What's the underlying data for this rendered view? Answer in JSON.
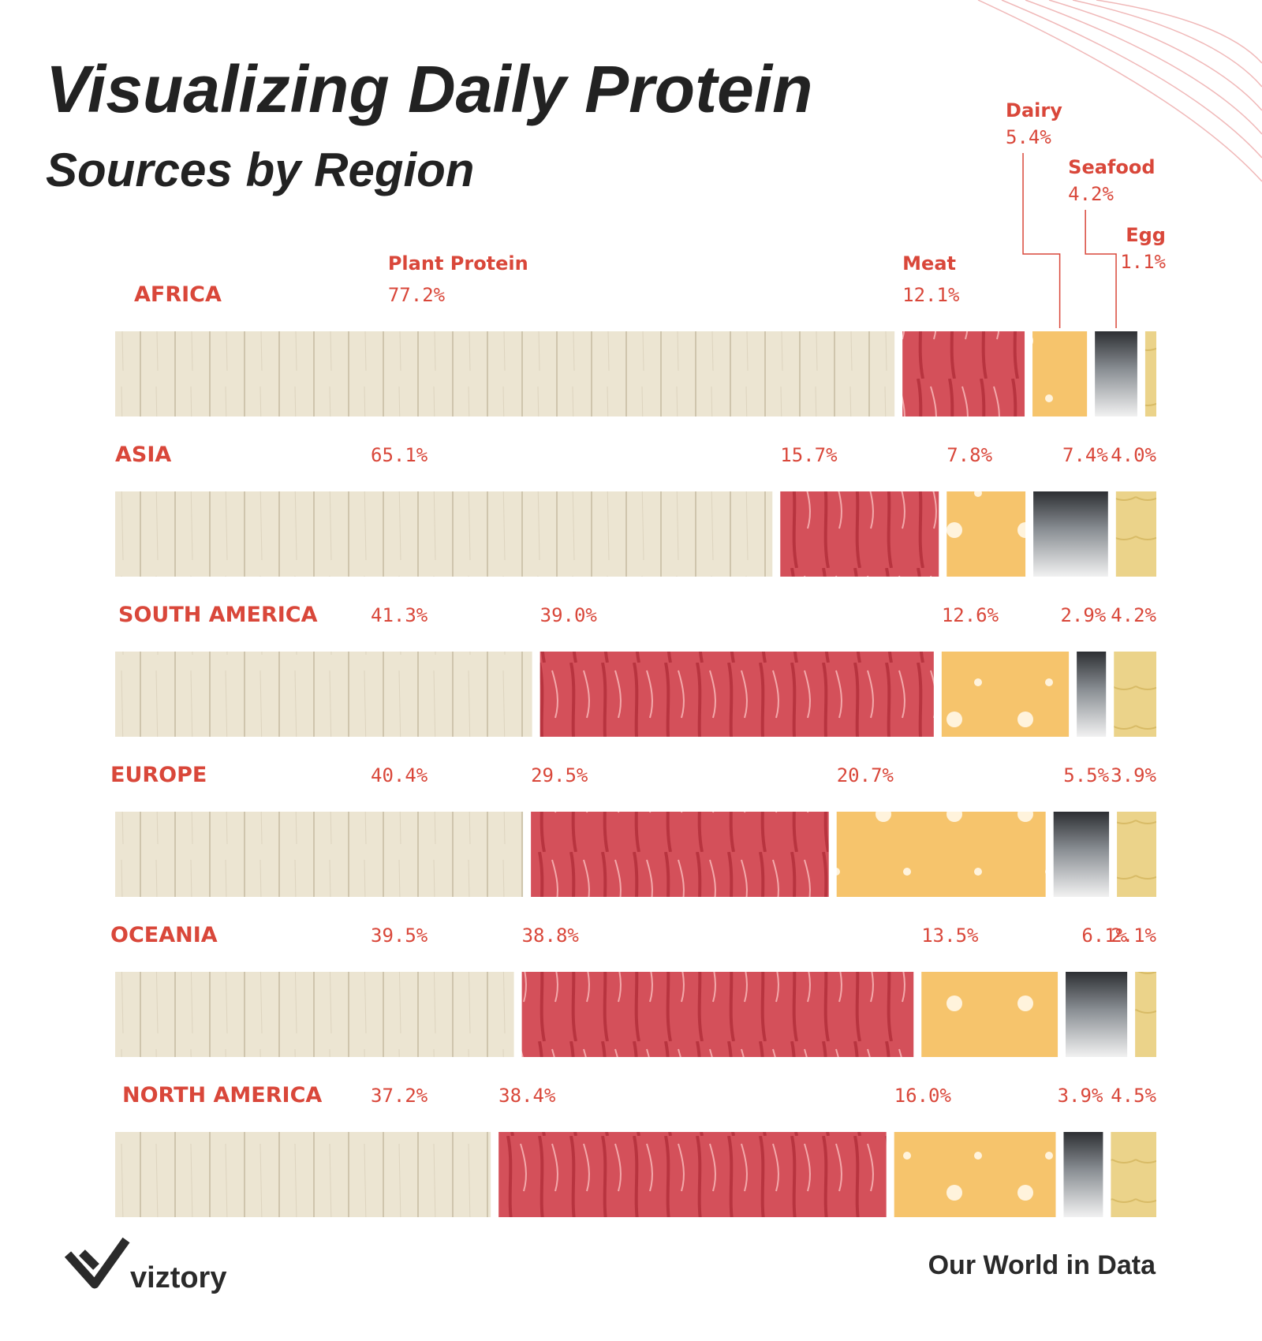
{
  "chart_data": {
    "type": "stacked-bar",
    "orientation": "horizontal",
    "title": "Visualizing Daily Protein",
    "subtitle": "Sources by Region",
    "logo": "viztory",
    "source": "Our World in Data",
    "categories": [
      "AFRICA",
      "ASIA",
      "SOUTH AMERICA",
      "EUROPE",
      "OCEANIA",
      "NORTH AMERICA"
    ],
    "series": [
      {
        "name": "Plant Protein",
        "color": "#ece5d2",
        "values": [
          77.2,
          65.1,
          41.3,
          40.4,
          39.5,
          37.2
        ],
        "value_labels": [
          "77.2%",
          "65.1%",
          "41.3%",
          "40.4%",
          "39.5%",
          "37.2%"
        ]
      },
      {
        "name": "Meat",
        "color": "#d4505a",
        "values": [
          12.1,
          15.7,
          39.0,
          29.5,
          38.8,
          38.4
        ],
        "value_labels": [
          "12.1%",
          "15.7%",
          "39.0%",
          "29.5%",
          "38.8%",
          "38.4%"
        ]
      },
      {
        "name": "Dairy",
        "color": "#f6c46c",
        "values": [
          5.4,
          7.8,
          12.6,
          20.7,
          13.5,
          16.0
        ],
        "value_labels": [
          "5.4%",
          "7.8%",
          "12.6%",
          "20.7%",
          "13.5%",
          "16.0%"
        ]
      },
      {
        "name": "Seafood",
        "color": "#8a8f94",
        "values": [
          4.2,
          7.4,
          2.9,
          5.5,
          6.1,
          3.9
        ],
        "value_labels": [
          "4.2%",
          "7.4%",
          "2.9%",
          "5.5%",
          "6.1%",
          "3.9%"
        ]
      },
      {
        "name": "Egg",
        "color": "#ebd38a",
        "values": [
          1.1,
          4.0,
          4.2,
          3.9,
          2.1,
          4.5
        ],
        "value_labels": [
          "1.1%",
          "4.0%",
          "4.2%",
          "3.9%",
          "2.1%",
          "4.5%"
        ]
      }
    ]
  }
}
